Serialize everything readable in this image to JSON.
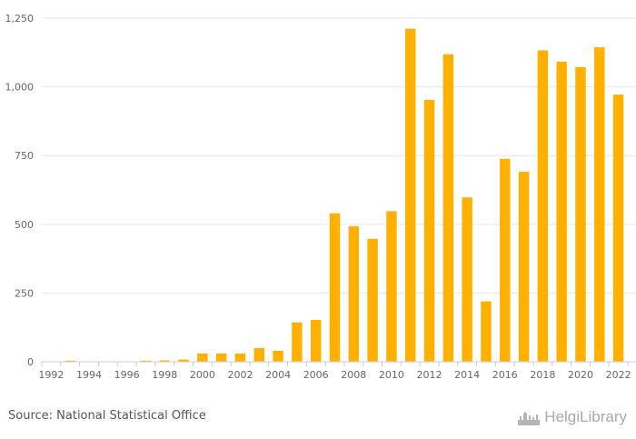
{
  "source_text": "Source: National Statistical Office",
  "brand": {
    "name": "HelgiLibrary"
  },
  "chart_data": {
    "type": "bar",
    "categories": [
      "1992",
      "1993",
      "1994",
      "1995",
      "1996",
      "1997",
      "1998",
      "1999",
      "2000",
      "2001",
      "2002",
      "2003",
      "2004",
      "2005",
      "2006",
      "2007",
      "2008",
      "2009",
      "2010",
      "2011",
      "2012",
      "2013",
      "2014",
      "2015",
      "2016",
      "2017",
      "2018",
      "2019",
      "2020",
      "2021",
      "2022"
    ],
    "x_tick_labels": [
      "1992",
      "1994",
      "1996",
      "1998",
      "2000",
      "2002",
      "2004",
      "2006",
      "2008",
      "2010",
      "2012",
      "2014",
      "2016",
      "2018",
      "2020",
      "2022"
    ],
    "values": [
      0,
      4,
      0,
      0,
      0,
      4,
      5,
      8,
      30,
      30,
      30,
      50,
      40,
      143,
      152,
      540,
      493,
      447,
      548,
      1212,
      953,
      1119,
      598,
      220,
      738,
      691,
      1133,
      1092,
      1072,
      1144,
      972
    ],
    "y_ticks": [
      0,
      250,
      500,
      750,
      1000,
      1250
    ],
    "y_tick_labels": [
      "0",
      "250",
      "500",
      "750",
      "1,000",
      "1,250"
    ],
    "ylim": [
      0,
      1250
    ],
    "grid": true,
    "bar_color": "#ffb000"
  }
}
